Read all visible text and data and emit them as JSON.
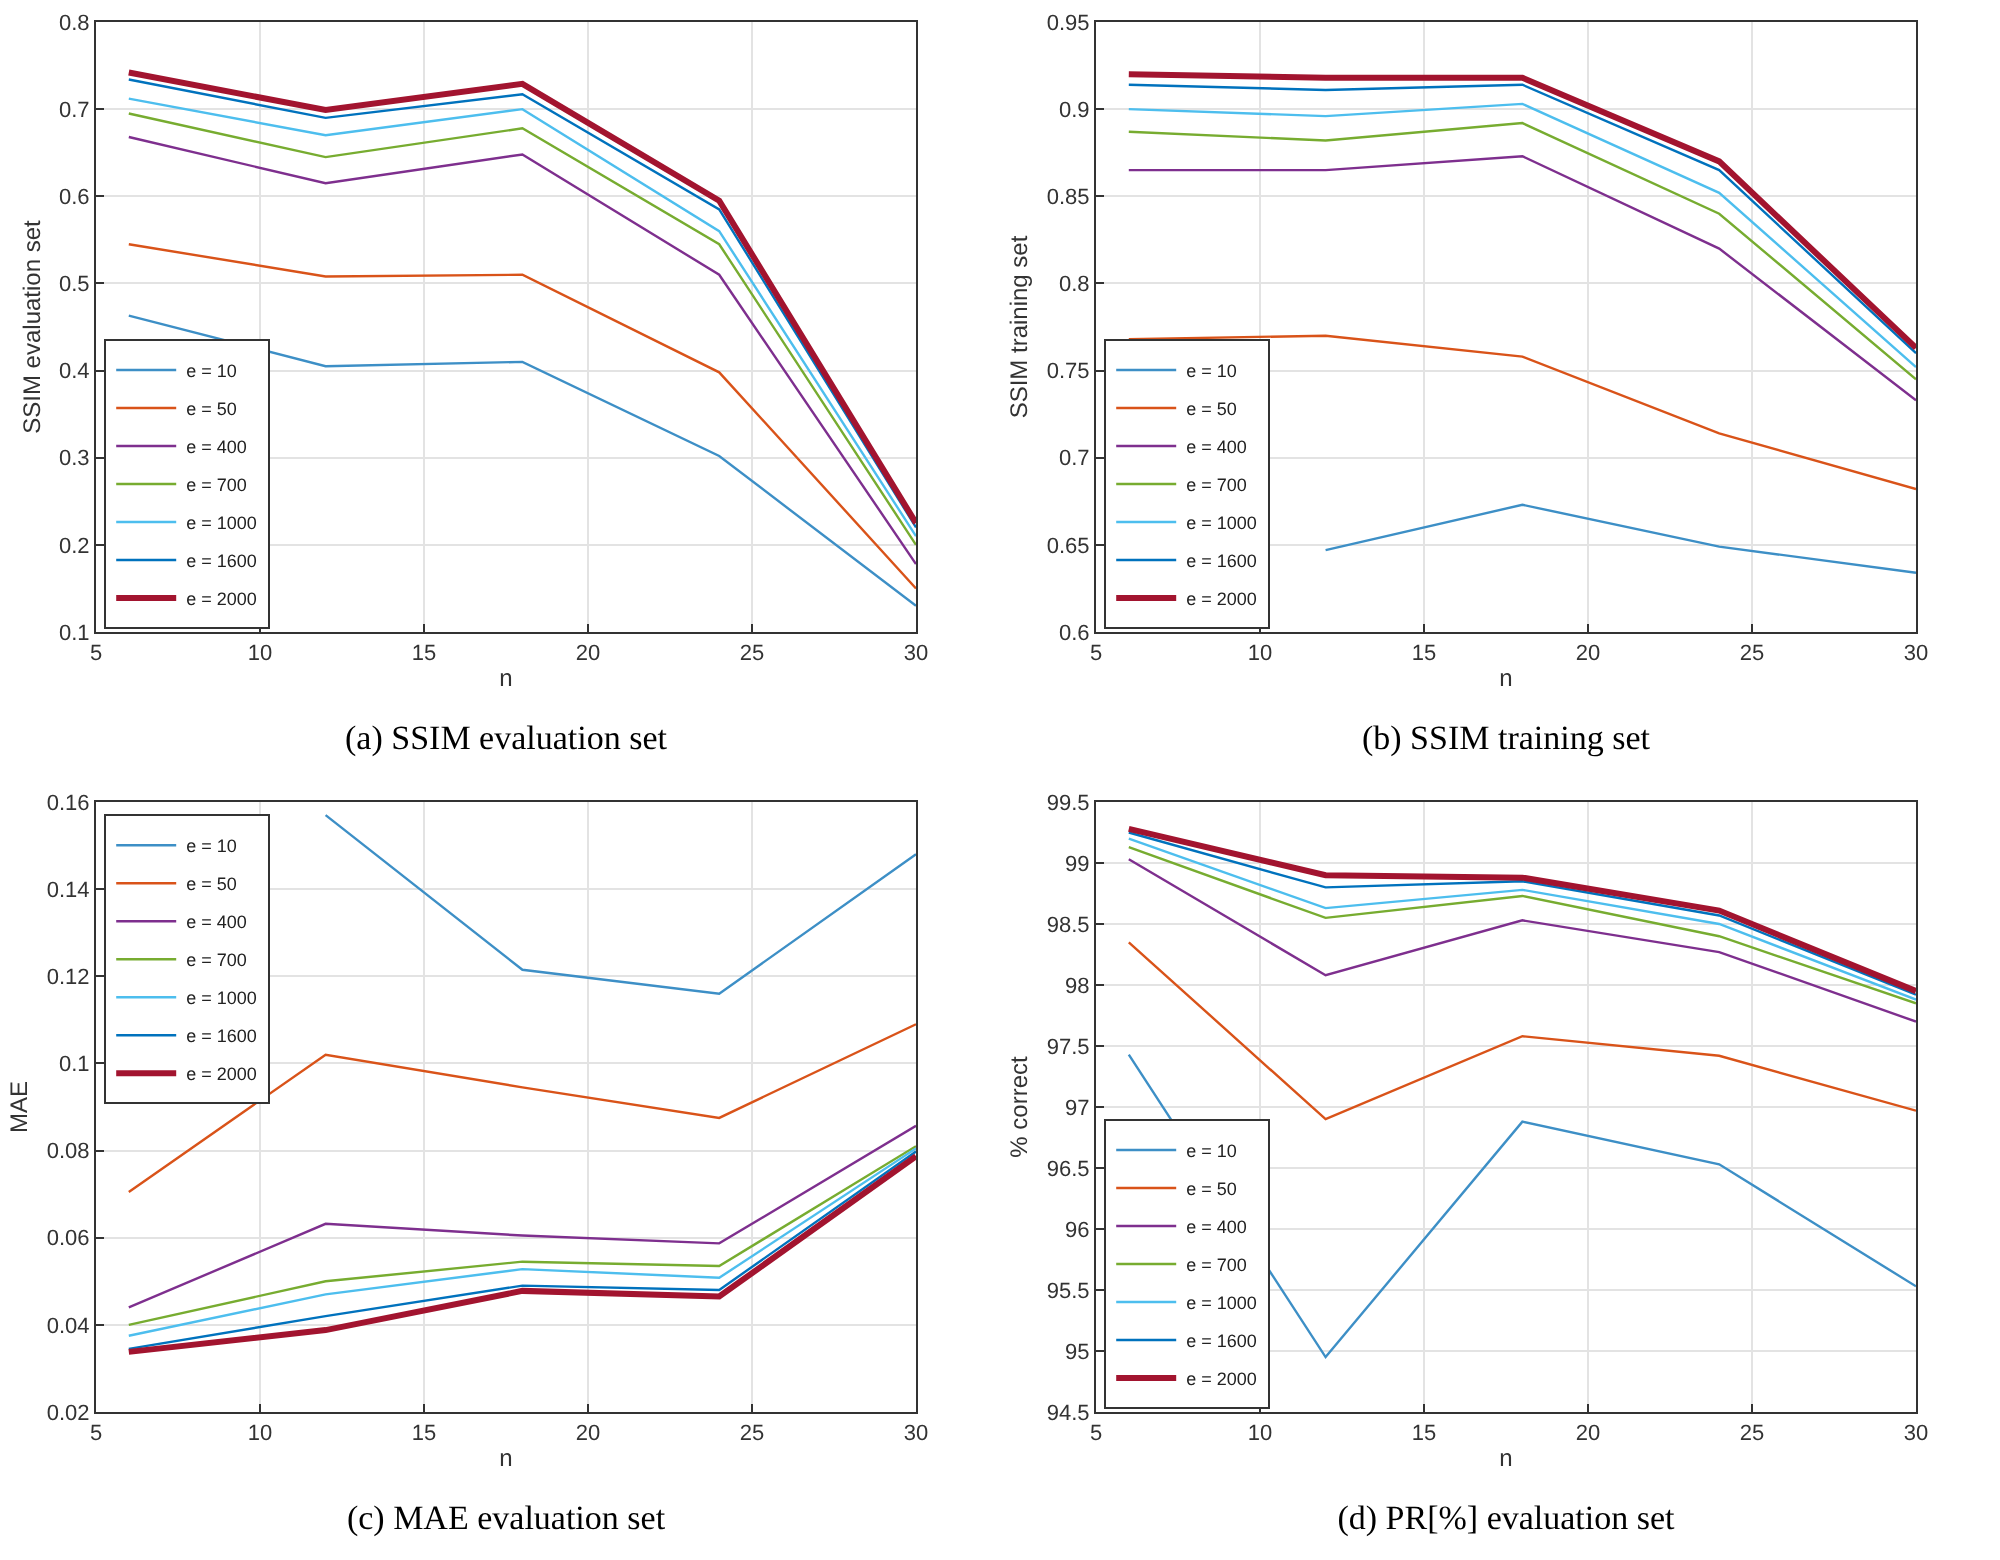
{
  "chart_data": [
    {
      "type": "line",
      "title": "(a) SSIM evaluation set",
      "xlabel": "n",
      "ylabel": "SSIM evaluation set",
      "x": [
        6,
        12,
        18,
        24,
        30
      ],
      "xlim": [
        5,
        30
      ],
      "xticks": [
        5,
        10,
        15,
        20,
        25,
        30
      ],
      "ylim": [
        0.1,
        0.8
      ],
      "yticks": [
        0.1,
        0.2,
        0.3,
        0.4,
        0.5,
        0.6,
        0.7,
        0.8
      ],
      "grid": true,
      "legend": "bottom left",
      "marker": "none",
      "line_style": "solid",
      "series": [
        {
          "name": "e = 10",
          "color": "#3d8fc6",
          "values": [
            0.463,
            0.405,
            0.41,
            0.302,
            0.13
          ]
        },
        {
          "name": "e = 50",
          "color": "#d95319",
          "values": [
            0.545,
            0.508,
            0.51,
            0.398,
            0.15
          ]
        },
        {
          "name": "e = 400",
          "color": "#7e2f8e",
          "values": [
            0.668,
            0.615,
            0.648,
            0.51,
            0.178
          ]
        },
        {
          "name": "e = 700",
          "color": "#77ac30",
          "values": [
            0.695,
            0.645,
            0.678,
            0.545,
            0.2
          ]
        },
        {
          "name": "e = 1000",
          "color": "#4dbeee",
          "values": [
            0.712,
            0.67,
            0.7,
            0.56,
            0.21
          ]
        },
        {
          "name": "e = 1600",
          "color": "#0072bd",
          "values": [
            0.734,
            0.69,
            0.717,
            0.585,
            0.22
          ]
        },
        {
          "name": "e = 2000",
          "color": "#a2142f",
          "values": [
            0.742,
            0.699,
            0.729,
            0.595,
            0.225
          ]
        }
      ]
    },
    {
      "type": "line",
      "title": "(b) SSIM training set",
      "xlabel": "n",
      "ylabel": "SSIM training set",
      "x": [
        6,
        12,
        18,
        24,
        30
      ],
      "xlim": [
        5,
        30
      ],
      "xticks": [
        5,
        10,
        15,
        20,
        25,
        30
      ],
      "ylim": [
        0.6,
        0.95
      ],
      "yticks": [
        0.6,
        0.65,
        0.7,
        0.75,
        0.8,
        0.85,
        0.9,
        0.95
      ],
      "grid": true,
      "legend": "bottom left",
      "marker": "none",
      "line_style": "solid",
      "series": [
        {
          "name": "e = 10",
          "color": "#3d8fc6",
          "values": [
            null,
            0.647,
            0.673,
            0.649,
            0.634
          ]
        },
        {
          "name": "e = 50",
          "color": "#d95319",
          "values": [
            0.768,
            0.77,
            0.758,
            0.714,
            0.682
          ]
        },
        {
          "name": "e = 400",
          "color": "#7e2f8e",
          "values": [
            0.865,
            0.865,
            0.873,
            0.82,
            0.733
          ]
        },
        {
          "name": "e = 700",
          "color": "#77ac30",
          "values": [
            0.887,
            0.882,
            0.892,
            0.84,
            0.745
          ]
        },
        {
          "name": "e = 1000",
          "color": "#4dbeee",
          "values": [
            0.9,
            0.896,
            0.903,
            0.852,
            0.752
          ]
        },
        {
          "name": "e = 1600",
          "color": "#0072bd",
          "values": [
            0.914,
            0.911,
            0.914,
            0.865,
            0.76
          ]
        },
        {
          "name": "e = 2000",
          "color": "#a2142f",
          "values": [
            0.92,
            0.918,
            0.918,
            0.87,
            0.763
          ]
        }
      ]
    },
    {
      "type": "line",
      "title": "(c) MAE evaluation set",
      "xlabel": "n",
      "ylabel": "MAE",
      "x": [
        6,
        12,
        18,
        24,
        30
      ],
      "xlim": [
        5,
        30
      ],
      "xticks": [
        5,
        10,
        15,
        20,
        25,
        30
      ],
      "ylim": [
        0.02,
        0.16
      ],
      "yticks": [
        0.02,
        0.04,
        0.06,
        0.08,
        0.1,
        0.12,
        0.14,
        0.16
      ],
      "grid": true,
      "legend": "top left",
      "marker": "none",
      "line_style": "solid",
      "series": [
        {
          "name": "e = 10",
          "color": "#3d8fc6",
          "values": [
            null,
            0.157,
            0.1215,
            0.116,
            0.148
          ]
        },
        {
          "name": "e = 50",
          "color": "#d95319",
          "values": [
            0.0705,
            0.102,
            0.0945,
            0.0875,
            0.109
          ]
        },
        {
          "name": "e = 400",
          "color": "#7e2f8e",
          "values": [
            0.044,
            0.0632,
            0.0605,
            0.0587,
            0.0857
          ]
        },
        {
          "name": "e = 700",
          "color": "#77ac30",
          "values": [
            0.04,
            0.05,
            0.0545,
            0.0535,
            0.081
          ]
        },
        {
          "name": "e = 1000",
          "color": "#4dbeee",
          "values": [
            0.0375,
            0.047,
            0.0528,
            0.0508,
            0.0805
          ]
        },
        {
          "name": "e = 1600",
          "color": "#0072bd",
          "values": [
            0.0345,
            0.042,
            0.049,
            0.048,
            0.0798
          ]
        },
        {
          "name": "e = 2000",
          "color": "#a2142f",
          "values": [
            0.0338,
            0.0388,
            0.0478,
            0.0465,
            0.0787
          ]
        }
      ]
    },
    {
      "type": "line",
      "title": "(d) PR[%] evaluation set",
      "xlabel": "n",
      "ylabel": "% correct",
      "x": [
        6,
        12,
        18,
        24,
        30
      ],
      "xlim": [
        5,
        30
      ],
      "xticks": [
        5,
        10,
        15,
        20,
        25,
        30
      ],
      "ylim": [
        94.5,
        99.5
      ],
      "yticks": [
        94.5,
        95,
        95.5,
        96,
        96.5,
        97,
        97.5,
        98,
        98.5,
        99,
        99.5
      ],
      "grid": true,
      "legend": "bottom left",
      "marker": "none",
      "line_style": "solid",
      "series": [
        {
          "name": "e = 10",
          "color": "#3d8fc6",
          "values": [
            97.43,
            94.95,
            96.88,
            96.53,
            95.53
          ]
        },
        {
          "name": "e = 50",
          "color": "#d95319",
          "values": [
            98.35,
            96.9,
            97.58,
            97.42,
            96.97
          ]
        },
        {
          "name": "e = 400",
          "color": "#7e2f8e",
          "values": [
            99.03,
            98.08,
            98.53,
            98.27,
            97.7
          ]
        },
        {
          "name": "e = 700",
          "color": "#77ac30",
          "values": [
            99.13,
            98.55,
            98.73,
            98.4,
            97.85
          ]
        },
        {
          "name": "e = 1000",
          "color": "#4dbeee",
          "values": [
            99.2,
            98.63,
            98.78,
            98.5,
            97.88
          ]
        },
        {
          "name": "e = 1600",
          "color": "#0072bd",
          "values": [
            99.25,
            98.8,
            98.85,
            98.57,
            97.92
          ]
        },
        {
          "name": "e = 2000",
          "color": "#a2142f",
          "values": [
            99.28,
            98.9,
            98.88,
            98.61,
            97.95
          ]
        }
      ]
    }
  ]
}
